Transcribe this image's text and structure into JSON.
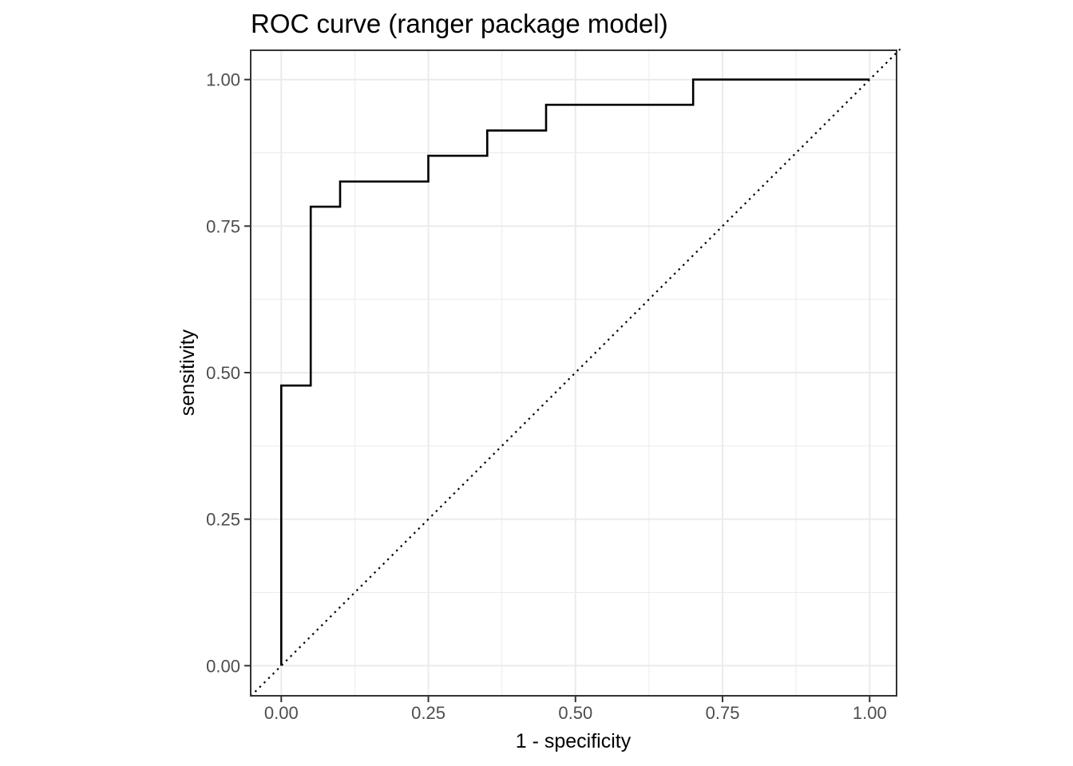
{
  "chart_data": {
    "type": "line",
    "subtype": "roc-step-curve",
    "title": "ROC curve (ranger package model)",
    "xlabel": "1 - specificity",
    "ylabel": "sensitivity",
    "xlim": [
      -0.052,
      1.052
    ],
    "ylim": [
      -0.052,
      1.052
    ],
    "grid": "major+minor",
    "legend_position": "none",
    "x_ticks": {
      "values": [
        0,
        0.25,
        0.5,
        0.75,
        1
      ],
      "labels": [
        "0.00",
        "0.25",
        "0.50",
        "0.75",
        "1.00"
      ]
    },
    "y_ticks": {
      "values": [
        0,
        0.25,
        0.5,
        0.75,
        1
      ],
      "labels": [
        "0.00",
        "0.25",
        "0.50",
        "0.75",
        "1.00"
      ]
    },
    "minor_gridlines": [
      0.125,
      0.375,
      0.625,
      0.875
    ],
    "series": [
      {
        "name": "roc-curve",
        "style": "solid-step",
        "color": "#000000",
        "points": [
          [
            0,
            0
          ],
          [
            0,
            0.478
          ],
          [
            0.05,
            0.478
          ],
          [
            0.05,
            0.783
          ],
          [
            0.1,
            0.783
          ],
          [
            0.1,
            0.826
          ],
          [
            0.25,
            0.826
          ],
          [
            0.25,
            0.87
          ],
          [
            0.35,
            0.87
          ],
          [
            0.35,
            0.913
          ],
          [
            0.45,
            0.913
          ],
          [
            0.45,
            0.957
          ],
          [
            0.7,
            0.957
          ],
          [
            0.7,
            1.0
          ],
          [
            1.0,
            1.0
          ]
        ]
      },
      {
        "name": "chance-diagonal",
        "style": "dotted",
        "color": "#000000",
        "points": [
          [
            -0.052,
            -0.052
          ],
          [
            1.052,
            1.052
          ]
        ]
      }
    ],
    "theme": {
      "background": "#ffffff",
      "panel_background": "#ffffff",
      "panel_border": "#333333",
      "grid_major": "#ebebeb",
      "grid_minor": "#ebebeb",
      "axis_tick_color": "#333333",
      "axis_text_color": "#4d4d4d",
      "title_color": "#000000"
    }
  }
}
